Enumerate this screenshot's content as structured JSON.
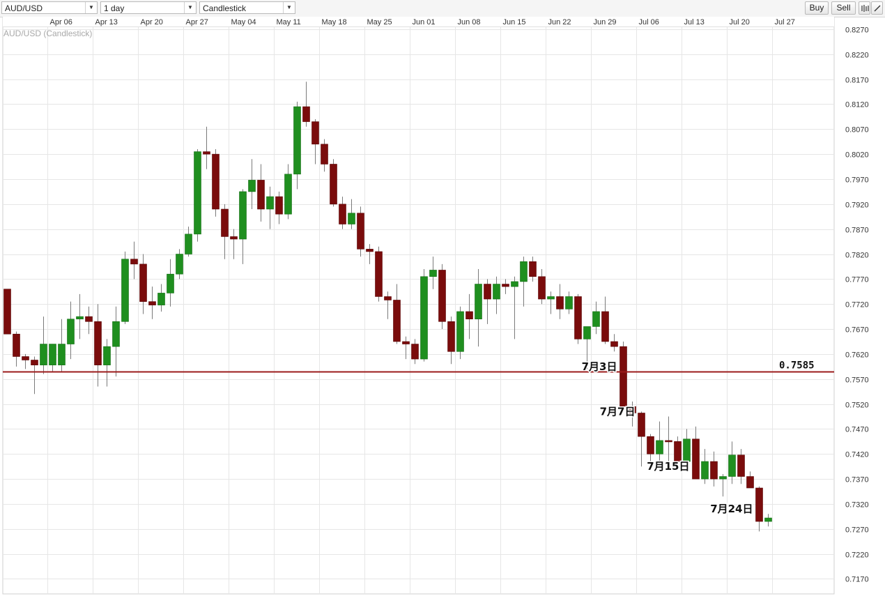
{
  "toolbar": {
    "symbol": "AUD/USD",
    "interval": "1 day",
    "chart_style": "Candlestick",
    "buy_label": "Buy",
    "sell_label": "Sell",
    "icons": [
      "bar-chart-icon",
      "draw-line-icon"
    ]
  },
  "colors": {
    "up": "#1f8f1f",
    "down": "#7a0c0c",
    "wick": "#7a7a7a",
    "grid": "#e6e6e6",
    "level_line": "#9b1b1b"
  },
  "chart_data": {
    "type": "candlestick",
    "title": "AUD/USD (Candlestick)",
    "ylim": [
      0.714,
      0.8295
    ],
    "y_ticks": [
      "0.8270",
      "0.8220",
      "0.8170",
      "0.8120",
      "0.8070",
      "0.8020",
      "0.7970",
      "0.7920",
      "0.7870",
      "0.7820",
      "0.7770",
      "0.7720",
      "0.7670",
      "0.7620",
      "0.7570",
      "0.7520",
      "0.7470",
      "0.7420",
      "0.7370",
      "0.7320",
      "0.7270",
      "0.7220",
      "0.7170"
    ],
    "x_ticks": [
      {
        "label": "Apr 06",
        "index": 5
      },
      {
        "label": "Apr 13",
        "index": 10
      },
      {
        "label": "Apr 20",
        "index": 15
      },
      {
        "label": "Apr 27",
        "index": 20
      },
      {
        "label": "May 04",
        "index": 25
      },
      {
        "label": "May 11",
        "index": 30
      },
      {
        "label": "May 18",
        "index": 35
      },
      {
        "label": "May 25",
        "index": 40
      },
      {
        "label": "Jun 01",
        "index": 45
      },
      {
        "label": "Jun 08",
        "index": 50
      },
      {
        "label": "Jun 15",
        "index": 55
      },
      {
        "label": "Jun 22",
        "index": 60
      },
      {
        "label": "Jun 29",
        "index": 65
      },
      {
        "label": "Jul 06",
        "index": 70
      },
      {
        "label": "Jul 13",
        "index": 75
      },
      {
        "label": "Jul 20",
        "index": 80
      },
      {
        "label": "Jul 27",
        "index": 85
      }
    ],
    "ohlc": [
      [
        0.775,
        0.775,
        0.766,
        0.766
      ],
      [
        0.766,
        0.7665,
        0.7595,
        0.7615
      ],
      [
        0.7615,
        0.762,
        0.759,
        0.7608
      ],
      [
        0.7608,
        0.7615,
        0.754,
        0.7598
      ],
      [
        0.7598,
        0.7695,
        0.758,
        0.764
      ],
      [
        0.7598,
        0.764,
        0.7585,
        0.764
      ],
      [
        0.7598,
        0.769,
        0.7585,
        0.764
      ],
      [
        0.764,
        0.7725,
        0.761,
        0.769
      ],
      [
        0.769,
        0.774,
        0.765,
        0.7695
      ],
      [
        0.7695,
        0.7715,
        0.766,
        0.7685
      ],
      [
        0.7685,
        0.772,
        0.7555,
        0.7598
      ],
      [
        0.7598,
        0.765,
        0.7555,
        0.7635
      ],
      [
        0.7635,
        0.7715,
        0.7575,
        0.7685
      ],
      [
        0.7685,
        0.7825,
        0.768,
        0.781
      ],
      [
        0.781,
        0.7845,
        0.777,
        0.78
      ],
      [
        0.78,
        0.782,
        0.77,
        0.7725
      ],
      [
        0.7725,
        0.7755,
        0.769,
        0.7718
      ],
      [
        0.7718,
        0.776,
        0.7705,
        0.7742
      ],
      [
        0.7742,
        0.781,
        0.7715,
        0.778
      ],
      [
        0.778,
        0.783,
        0.777,
        0.782
      ],
      [
        0.782,
        0.7875,
        0.7815,
        0.786
      ],
      [
        0.786,
        0.803,
        0.7845,
        0.8025
      ],
      [
        0.8025,
        0.8075,
        0.799,
        0.802
      ],
      [
        0.802,
        0.803,
        0.7895,
        0.791
      ],
      [
        0.791,
        0.792,
        0.781,
        0.7855
      ],
      [
        0.7855,
        0.787,
        0.781,
        0.785
      ],
      [
        0.785,
        0.795,
        0.78,
        0.7945
      ],
      [
        0.7945,
        0.801,
        0.791,
        0.7968
      ],
      [
        0.7968,
        0.8,
        0.7885,
        0.791
      ],
      [
        0.791,
        0.7955,
        0.787,
        0.7935
      ],
      [
        0.7935,
        0.7945,
        0.788,
        0.79
      ],
      [
        0.79,
        0.8,
        0.789,
        0.798
      ],
      [
        0.798,
        0.8125,
        0.795,
        0.8115
      ],
      [
        0.8115,
        0.8165,
        0.8075,
        0.8085
      ],
      [
        0.8085,
        0.809,
        0.8,
        0.804
      ],
      [
        0.804,
        0.805,
        0.7985,
        0.8
      ],
      [
        0.8,
        0.801,
        0.7915,
        0.792
      ],
      [
        0.792,
        0.7935,
        0.787,
        0.788
      ],
      [
        0.788,
        0.793,
        0.787,
        0.7902
      ],
      [
        0.7902,
        0.7915,
        0.7815,
        0.783
      ],
      [
        0.783,
        0.784,
        0.78,
        0.7825
      ],
      [
        0.7825,
        0.7835,
        0.7725,
        0.7735
      ],
      [
        0.7735,
        0.7745,
        0.769,
        0.7728
      ],
      [
        0.7728,
        0.776,
        0.764,
        0.7645
      ],
      [
        0.7645,
        0.7655,
        0.761,
        0.764
      ],
      [
        0.764,
        0.765,
        0.76,
        0.761
      ],
      [
        0.761,
        0.779,
        0.7605,
        0.7775
      ],
      [
        0.7775,
        0.7815,
        0.775,
        0.7788
      ],
      [
        0.7788,
        0.78,
        0.767,
        0.7685
      ],
      [
        0.7685,
        0.7695,
        0.76,
        0.7625
      ],
      [
        0.7625,
        0.7715,
        0.761,
        0.7705
      ],
      [
        0.7705,
        0.774,
        0.765,
        0.769
      ],
      [
        0.769,
        0.779,
        0.7635,
        0.776
      ],
      [
        0.776,
        0.777,
        0.768,
        0.773
      ],
      [
        0.773,
        0.7775,
        0.77,
        0.776
      ],
      [
        0.776,
        0.777,
        0.774,
        0.7755
      ],
      [
        0.7755,
        0.7775,
        0.765,
        0.7765
      ],
      [
        0.7765,
        0.7815,
        0.7715,
        0.7805
      ],
      [
        0.7805,
        0.7815,
        0.7765,
        0.7775
      ],
      [
        0.7775,
        0.779,
        0.772,
        0.773
      ],
      [
        0.773,
        0.7745,
        0.77,
        0.7735
      ],
      [
        0.7735,
        0.776,
        0.769,
        0.771
      ],
      [
        0.771,
        0.7745,
        0.77,
        0.7735
      ],
      [
        0.7735,
        0.774,
        0.764,
        0.765
      ],
      [
        0.765,
        0.767,
        0.759,
        0.7675
      ],
      [
        0.7675,
        0.7725,
        0.766,
        0.7705
      ],
      [
        0.7705,
        0.7735,
        0.764,
        0.7645
      ],
      [
        0.7645,
        0.766,
        0.7625,
        0.7635
      ],
      [
        0.7635,
        0.7645,
        0.751,
        0.7515
      ],
      [
        0.7515,
        0.7525,
        0.7475,
        0.7502
      ],
      [
        0.7502,
        0.7505,
        0.7395,
        0.7455
      ],
      [
        0.7455,
        0.746,
        0.7395,
        0.742
      ],
      [
        0.742,
        0.7485,
        0.7395,
        0.7447
      ],
      [
        0.7447,
        0.7495,
        0.7395,
        0.7445
      ],
      [
        0.7445,
        0.7455,
        0.74,
        0.7405
      ],
      [
        0.7405,
        0.747,
        0.7395,
        0.745
      ],
      [
        0.745,
        0.7475,
        0.7375,
        0.737
      ],
      [
        0.737,
        0.743,
        0.736,
        0.7405
      ],
      [
        0.7405,
        0.7425,
        0.7355,
        0.737
      ],
      [
        0.737,
        0.738,
        0.7335,
        0.7375
      ],
      [
        0.7375,
        0.7445,
        0.736,
        0.7418
      ],
      [
        0.7418,
        0.743,
        0.736,
        0.7375
      ],
      [
        0.7375,
        0.7385,
        0.7355,
        0.7352
      ],
      [
        0.7352,
        0.7355,
        0.7265,
        0.7285
      ],
      [
        0.7285,
        0.73,
        0.7275,
        0.7292
      ]
    ],
    "level": {
      "value": 0.7585,
      "label": "0.7585"
    },
    "annotations": [
      {
        "text": "7月3日",
        "index": 68,
        "price": 0.7595
      },
      {
        "text": "7月7日",
        "index": 70,
        "price": 0.7505
      },
      {
        "text": "7月15日",
        "index": 76,
        "price": 0.7395
      },
      {
        "text": "7月24日",
        "index": 83,
        "price": 0.731
      }
    ],
    "grid": true
  }
}
